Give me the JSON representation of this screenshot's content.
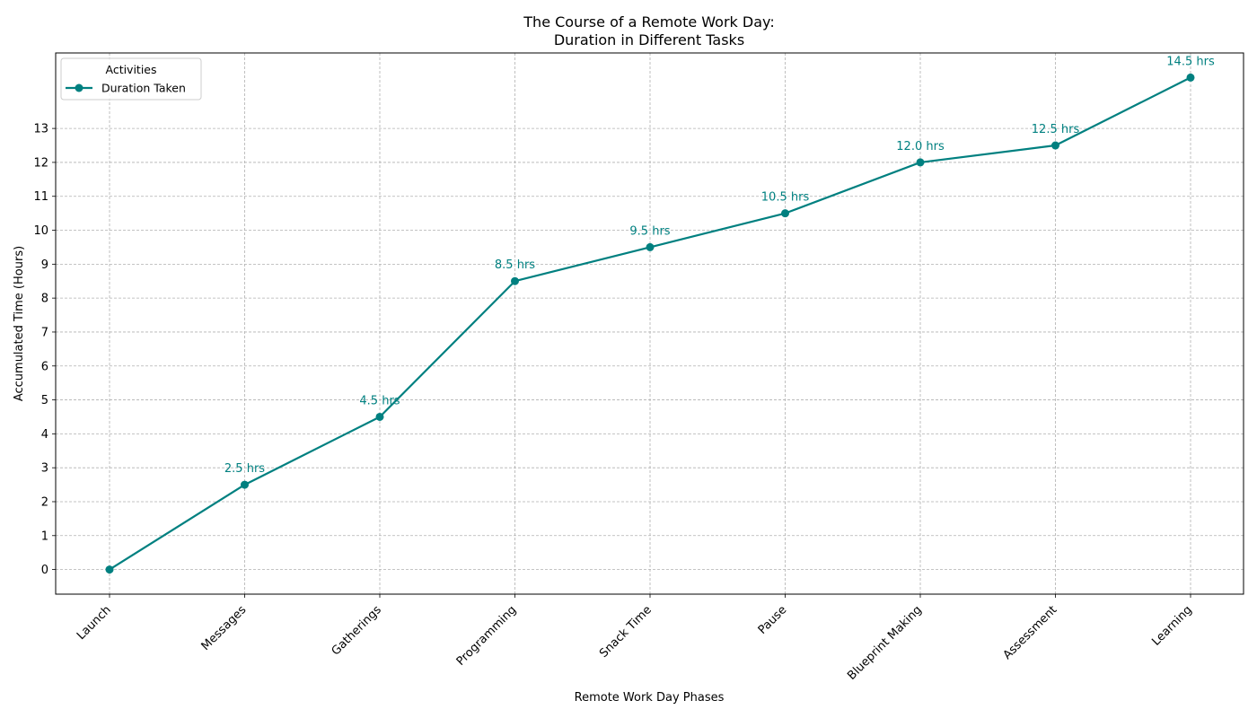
{
  "chart_data": {
    "type": "line",
    "title_lines": [
      "The Course of a Remote Work Day:",
      "Duration in Different Tasks"
    ],
    "xlabel": "Remote Work Day Phases",
    "ylabel": "Accumulated Time (Hours)",
    "categories": [
      "Launch",
      "Messages",
      "Gatherings",
      "Programming",
      "Snack Time",
      "Pause",
      "Blueprint Making",
      "Assessment",
      "Learning"
    ],
    "series": [
      {
        "name": "Duration Taken",
        "values": [
          0,
          2.5,
          4.5,
          8.5,
          9.5,
          10.5,
          12.0,
          12.5,
          14.5
        ],
        "color": "#008080",
        "marker": "circle"
      }
    ],
    "annotations": [
      "",
      "2.5 hrs",
      "4.5 hrs",
      "8.5 hrs",
      "9.5 hrs",
      "10.5 hrs",
      "12.0 hrs",
      "12.5 hrs",
      "14.5 hrs"
    ],
    "yticks": [
      "0",
      "1",
      "2",
      "3",
      "4",
      "5",
      "6",
      "7",
      "8",
      "9",
      "10",
      "11",
      "12",
      "13"
    ],
    "ylim": [
      -0.725,
      15.225
    ],
    "grid": true,
    "legend": {
      "title": "Activities",
      "placement": "upper-left",
      "entries": [
        "Duration Taken"
      ]
    },
    "x_tick_rotation_deg": 45
  }
}
